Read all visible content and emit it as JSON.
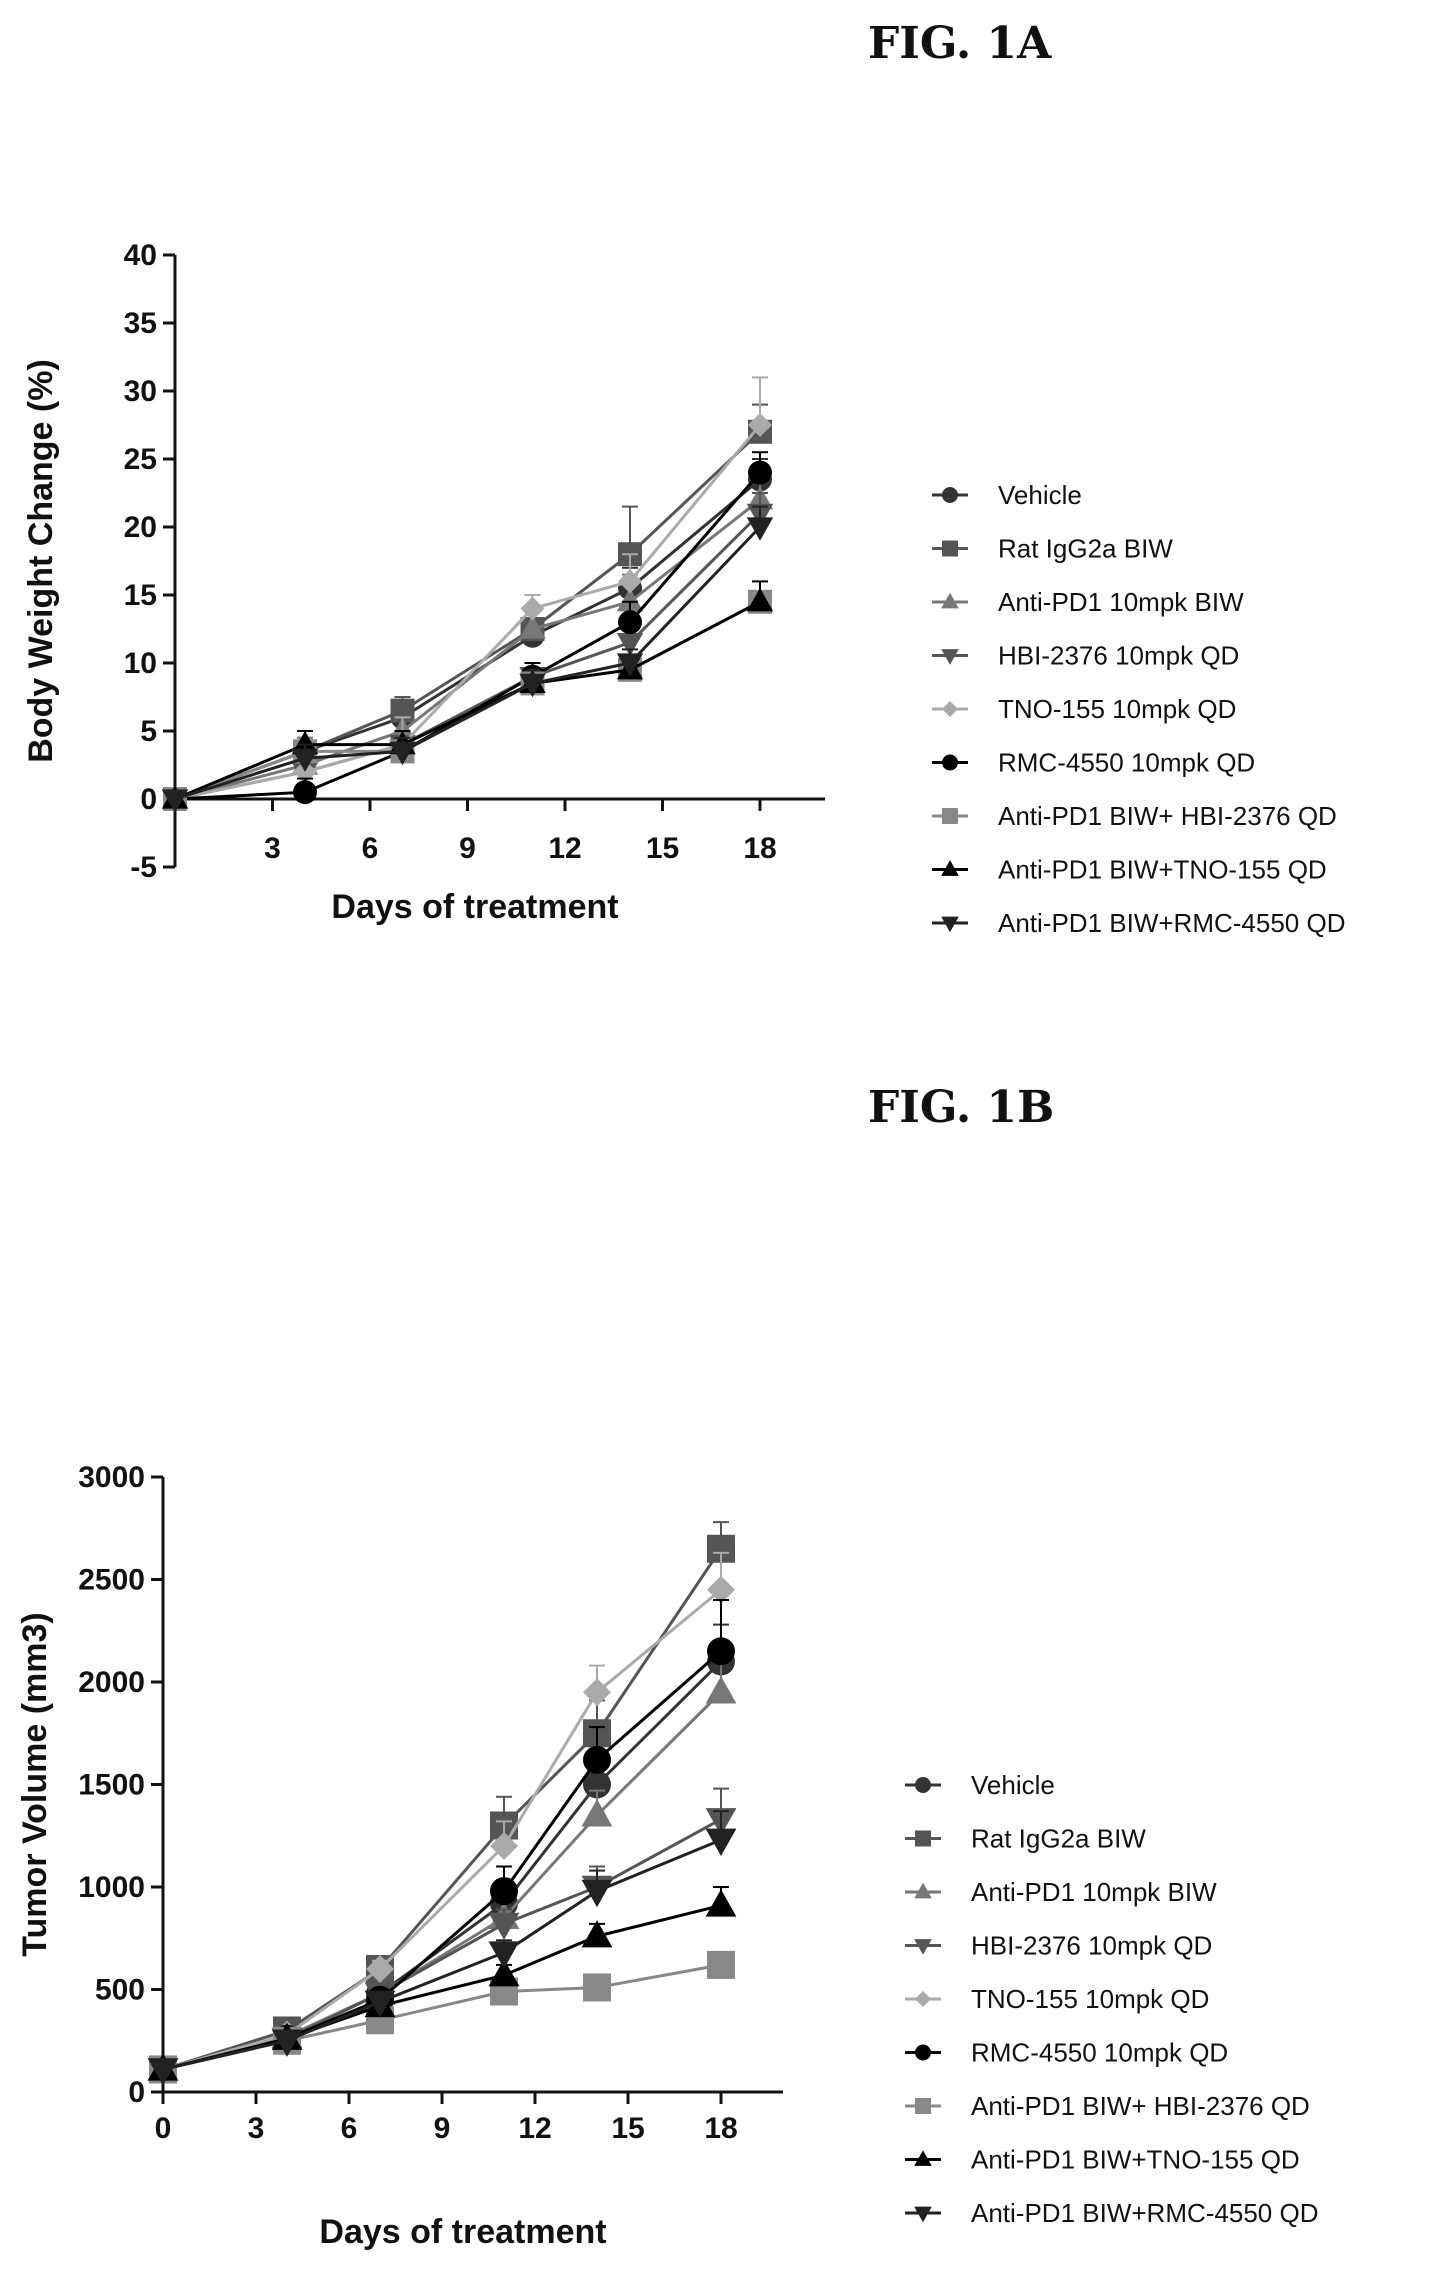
{
  "figures": [
    {
      "title": "FIG. 1A"
    },
    {
      "title": "FIG. 1B"
    }
  ],
  "legend_entries": [
    "Vehicle",
    "Rat IgG2a BIW",
    "Anti-PD1 10mpk BIW",
    "HBI-2376 10mpk QD",
    "TNO-155 10mpk QD",
    "RMC-4550 10mpk QD",
    "Anti-PD1 BIW+ HBI-2376 QD",
    "Anti-PD1 BIW+TNO-155 QD",
    "Anti-PD1 BIW+RMC-4550 QD"
  ],
  "series_styles": [
    {
      "color": "#333333",
      "marker": "circle"
    },
    {
      "color": "#555555",
      "marker": "square"
    },
    {
      "color": "#777777",
      "marker": "triangle-up"
    },
    {
      "color": "#555555",
      "marker": "triangle-down"
    },
    {
      "color": "#aaaaaa",
      "marker": "diamond"
    },
    {
      "color": "#000000",
      "marker": "circle"
    },
    {
      "color": "#888888",
      "marker": "square"
    },
    {
      "color": "#000000",
      "marker": "triangle-up"
    },
    {
      "color": "#222222",
      "marker": "triangle-down"
    }
  ],
  "chart_data": [
    {
      "type": "line",
      "xlabel": "Days of treatment",
      "ylabel": "Body Weight Change (%)",
      "xlim": [
        0,
        20
      ],
      "ylim": [
        -5,
        40
      ],
      "xticks": [
        3,
        6,
        9,
        12,
        15,
        18
      ],
      "yticks": [
        -5,
        0,
        5,
        10,
        15,
        20,
        25,
        30,
        35,
        40
      ],
      "legend": "right",
      "x": [
        0,
        4,
        7,
        11,
        14,
        18
      ],
      "series": [
        {
          "name": "Vehicle",
          "values": [
            0,
            3.5,
            6,
            12,
            15.5,
            23.5
          ],
          "errors": [
            0,
            1,
            1,
            1,
            1.5,
            1.5
          ]
        },
        {
          "name": "Rat IgG2a BIW",
          "values": [
            0,
            3.5,
            6.5,
            12.5,
            18,
            27
          ],
          "errors": [
            0,
            1,
            1,
            1.5,
            3.5,
            2
          ]
        },
        {
          "name": "Anti-PD1 10mpk BIW",
          "values": [
            0,
            2.5,
            5,
            12.5,
            14.5,
            22
          ],
          "errors": [
            0,
            1,
            1,
            1.5,
            2,
            1.5
          ]
        },
        {
          "name": "HBI-2376 10mpk QD",
          "values": [
            0,
            2,
            4,
            9,
            11.5,
            21
          ],
          "errors": [
            0,
            1,
            1,
            1,
            1,
            1.5
          ]
        },
        {
          "name": "TNO-155 10mpk QD",
          "values": [
            0,
            2,
            4,
            14,
            16,
            27.5
          ],
          "errors": [
            0,
            1,
            2,
            1,
            2,
            3.5
          ]
        },
        {
          "name": "RMC-4550 10mpk QD",
          "values": [
            0,
            0.5,
            3.5,
            9,
            13,
            24
          ],
          "errors": [
            0,
            1,
            1,
            1,
            1.5,
            1.5
          ]
        },
        {
          "name": "Anti-PD1 BIW+ HBI-2376 QD",
          "values": [
            0,
            3.5,
            3.5,
            8.5,
            9.5,
            14.5
          ],
          "errors": [
            0,
            1,
            1,
            1,
            1,
            1.5
          ]
        },
        {
          "name": "Anti-PD1 BIW+TNO-155 QD",
          "values": [
            0,
            4,
            4,
            8.5,
            9.5,
            14.5
          ],
          "errors": [
            0,
            1,
            1,
            1,
            1,
            1.5
          ]
        },
        {
          "name": "Anti-PD1 BIW+RMC-4550 QD",
          "values": [
            0,
            3,
            3.5,
            8.5,
            10,
            20
          ],
          "errors": [
            0,
            1,
            1,
            1,
            1,
            1.5
          ]
        }
      ]
    },
    {
      "type": "line",
      "xlabel": "Days of treatment",
      "ylabel": "Tumor Volume (mm3)",
      "xlim": [
        0,
        20
      ],
      "ylim": [
        0,
        3000
      ],
      "xticks": [
        0,
        3,
        6,
        9,
        12,
        15,
        18
      ],
      "yticks": [
        0,
        500,
        1000,
        1500,
        2000,
        2500,
        3000
      ],
      "legend": "right",
      "x": [
        0,
        4,
        7,
        11,
        14,
        18
      ],
      "series": [
        {
          "name": "Vehicle",
          "values": [
            110,
            270,
            480,
            920,
            1500,
            2100
          ],
          "errors": [
            0,
            20,
            40,
            80,
            120,
            180
          ]
        },
        {
          "name": "Rat IgG2a BIW",
          "values": [
            110,
            300,
            600,
            1300,
            1750,
            2650
          ],
          "errors": [
            0,
            20,
            40,
            140,
            160,
            130
          ]
        },
        {
          "name": "Anti-PD1 10mpk BIW",
          "values": [
            110,
            270,
            480,
            850,
            1350,
            1950
          ],
          "errors": [
            0,
            20,
            40,
            80,
            120,
            180
          ]
        },
        {
          "name": "HBI-2376 10mpk QD",
          "values": [
            110,
            260,
            480,
            820,
            1000,
            1330
          ],
          "errors": [
            0,
            20,
            40,
            70,
            100,
            150
          ]
        },
        {
          "name": "TNO-155 10mpk QD",
          "values": [
            110,
            280,
            600,
            1200,
            1950,
            2450
          ],
          "errors": [
            0,
            20,
            40,
            120,
            130,
            180
          ]
        },
        {
          "name": "RMC-4550 10mpk QD",
          "values": [
            110,
            260,
            450,
            980,
            1620,
            2150
          ],
          "errors": [
            0,
            20,
            40,
            120,
            160,
            250
          ]
        },
        {
          "name": "Anti-PD1 BIW+ HBI-2376 QD",
          "values": [
            110,
            250,
            350,
            490,
            510,
            620
          ],
          "errors": [
            0,
            20,
            30,
            40,
            40,
            50
          ]
        },
        {
          "name": "Anti-PD1 BIW+TNO-155 QD",
          "values": [
            110,
            260,
            420,
            570,
            760,
            910
          ],
          "errors": [
            0,
            20,
            40,
            50,
            60,
            90
          ]
        },
        {
          "name": "Anti-PD1 BIW+RMC-4550 QD",
          "values": [
            110,
            250,
            440,
            680,
            980,
            1230
          ],
          "errors": [
            0,
            20,
            40,
            60,
            100,
            140
          ]
        }
      ]
    }
  ]
}
